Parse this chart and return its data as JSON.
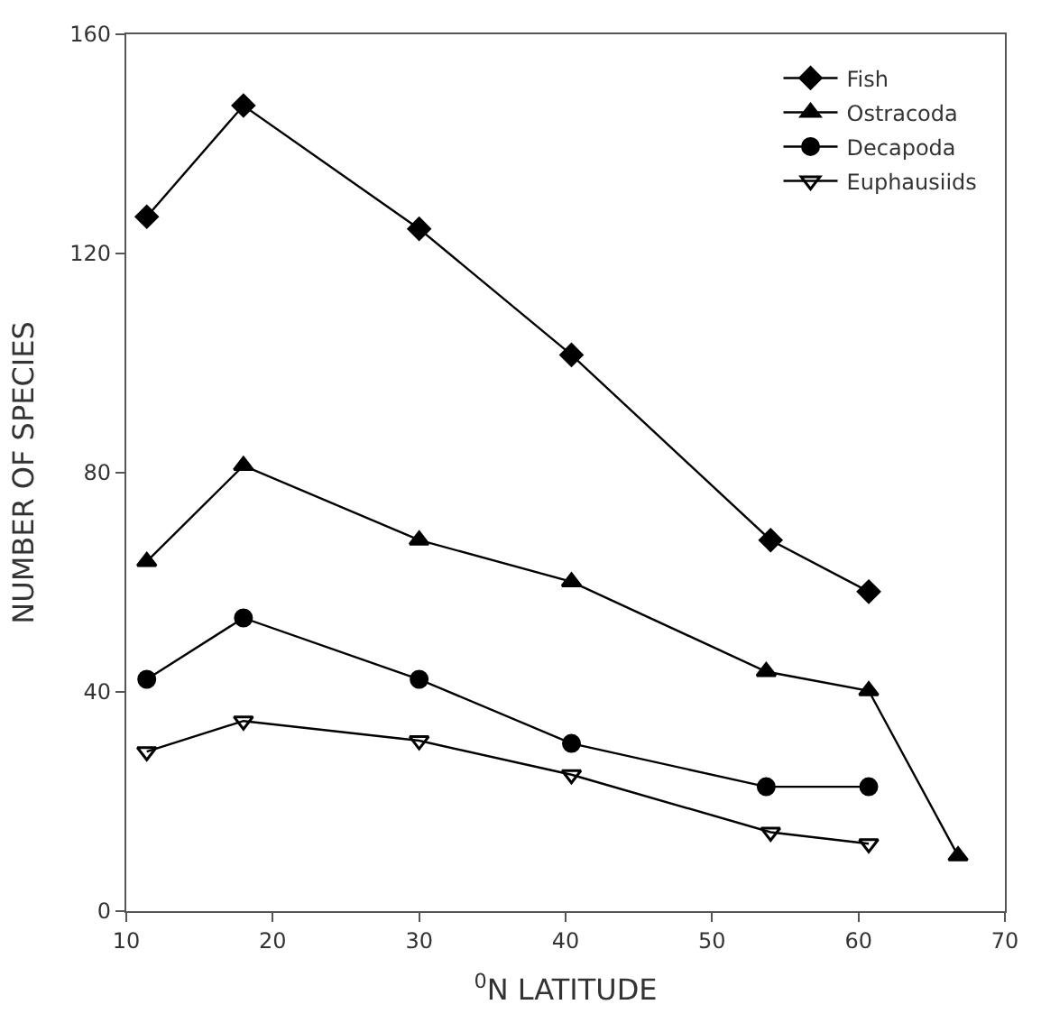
{
  "chart_data": {
    "type": "line",
    "xlabel": "$^{0}$N LATITUDE",
    "ylabel": "NUMBER OF SPECIES",
    "xlim": [
      10,
      70
    ],
    "xticks": [
      10,
      20,
      30,
      40,
      50,
      60,
      70
    ],
    "ylim": [
      0,
      160
    ],
    "yticks": [
      0,
      40,
      80,
      120,
      160
    ],
    "legend": "top right",
    "line_style": "solid",
    "series": [
      {
        "name": "Fish",
        "color": "#000000",
        "marker": "diamond",
        "x": [
          11.4,
          18.0,
          30.0,
          40.4,
          54.0,
          60.7
        ],
        "values": [
          126.7,
          147,
          124.5,
          101.5,
          67.7,
          58.3
        ]
      },
      {
        "name": "Ostracoda",
        "color": "#000000",
        "marker": "triangle",
        "x": [
          11.4,
          18.0,
          30.0,
          40.4,
          53.7,
          60.7,
          66.8
        ],
        "values": [
          63.8,
          81.3,
          67.7,
          60.1,
          43.7,
          40.2,
          10.1
        ]
      },
      {
        "name": "Decapoda",
        "color": "#000000",
        "marker": "circle",
        "x": [
          11.4,
          18.0,
          30.0,
          40.4,
          53.7,
          60.7
        ],
        "values": [
          42.3,
          53.5,
          42.3,
          30.6,
          22.7,
          22.7
        ]
      },
      {
        "name": "Euphausiids",
        "color": "#000000",
        "marker": "triangle-down-open",
        "x": [
          11.4,
          18.0,
          30.0,
          40.4,
          54.0,
          60.7
        ],
        "values": [
          29.1,
          34.7,
          31.1,
          24.9,
          14.4,
          12.3
        ]
      }
    ]
  }
}
